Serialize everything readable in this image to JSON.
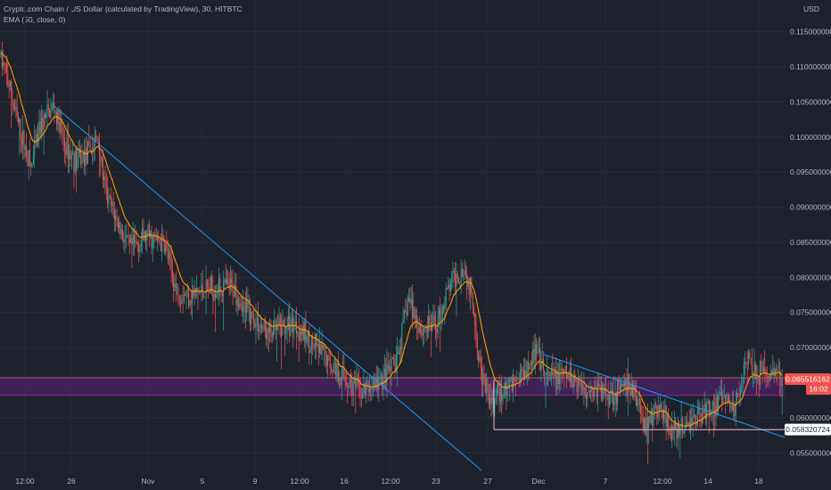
{
  "header": {
    "title": "Crypto.com Chain / US Dollar (calculated by TradingView), 30, HITBTC",
    "indicator": "EMA (50, close, 0)"
  },
  "colors": {
    "background": "#1e222d",
    "up": "#26a69a",
    "down": "#ef5350",
    "ema": "#ff9800",
    "trendline": "#2196f3",
    "zone_fill": "#7b1fa2",
    "support_line": "#f8bbd0",
    "price_tag": "#ef5350"
  },
  "chart_data": {
    "type": "candlestick",
    "currency": "USD",
    "y_ticks": [
      "0.115000000",
      "0.110000000",
      "0.105000000",
      "0.100000000",
      "0.095000000",
      "0.090000000",
      "0.085000000",
      "0.080000000",
      "0.075000000",
      "0.070000000",
      "0.060000000",
      "0.055000000"
    ],
    "ylim": [
      0.0525,
      0.1185
    ],
    "x_ticks": [
      "12:00",
      "26",
      "Nov",
      "5",
      "9",
      "12:00",
      "16",
      "12:00",
      "23",
      "27",
      "Dec",
      "7",
      "12:00",
      "14",
      "18"
    ],
    "price_path": [
      [
        0,
        0.1115
      ],
      [
        8,
        0.1085
      ],
      [
        20,
        0.102
      ],
      [
        35,
        0.0955
      ],
      [
        45,
        0.1015
      ],
      [
        60,
        0.1045
      ],
      [
        72,
        0.099
      ],
      [
        85,
        0.0965
      ],
      [
        98,
        0.0975
      ],
      [
        110,
        0.1
      ],
      [
        118,
        0.092
      ],
      [
        128,
        0.089
      ],
      [
        145,
        0.084
      ],
      [
        165,
        0.086
      ],
      [
        185,
        0.0845
      ],
      [
        198,
        0.078
      ],
      [
        215,
        0.0775
      ],
      [
        240,
        0.0785
      ],
      [
        262,
        0.0785
      ],
      [
        275,
        0.0755
      ],
      [
        300,
        0.072
      ],
      [
        330,
        0.0735
      ],
      [
        350,
        0.0705
      ],
      [
        380,
        0.0665
      ],
      [
        405,
        0.0635
      ],
      [
        430,
        0.0655
      ],
      [
        445,
        0.068
      ],
      [
        458,
        0.077
      ],
      [
        472,
        0.0725
      ],
      [
        490,
        0.0735
      ],
      [
        505,
        0.079
      ],
      [
        520,
        0.0815
      ],
      [
        530,
        0.077
      ],
      [
        540,
        0.066
      ],
      [
        550,
        0.062
      ],
      [
        565,
        0.064
      ],
      [
        580,
        0.0655
      ],
      [
        600,
        0.0695
      ],
      [
        612,
        0.0655
      ],
      [
        635,
        0.066
      ],
      [
        660,
        0.064
      ],
      [
        690,
        0.0635
      ],
      [
        705,
        0.0645
      ],
      [
        715,
        0.0625
      ],
      [
        722,
        0.059
      ],
      [
        740,
        0.0615
      ],
      [
        755,
        0.0575
      ],
      [
        775,
        0.0595
      ],
      [
        790,
        0.061
      ],
      [
        810,
        0.0625
      ],
      [
        825,
        0.0615
      ],
      [
        838,
        0.0695
      ],
      [
        848,
        0.0665
      ],
      [
        860,
        0.0665
      ],
      [
        880,
        0.0655
      ]
    ],
    "ema_period": 50,
    "trendlines": [
      {
        "from": [
          "Oct 26",
          0.1045
        ],
        "to": [
          "Nov 27",
          0.0525
        ]
      },
      {
        "from": [
          "Dec 1",
          0.069
        ],
        "to": [
          "Dec 20",
          0.0572
        ]
      }
    ],
    "zone": {
      "from": 0.0632,
      "to": 0.0657
    },
    "support_level": 0.0583,
    "price_tags": [
      {
        "value": "0.065516162",
        "price": 0.065516162
      },
      {
        "value": "16:02",
        "price": 0.0641
      },
      {
        "value": "0.058320724",
        "price": 0.058320724
      }
    ]
  }
}
